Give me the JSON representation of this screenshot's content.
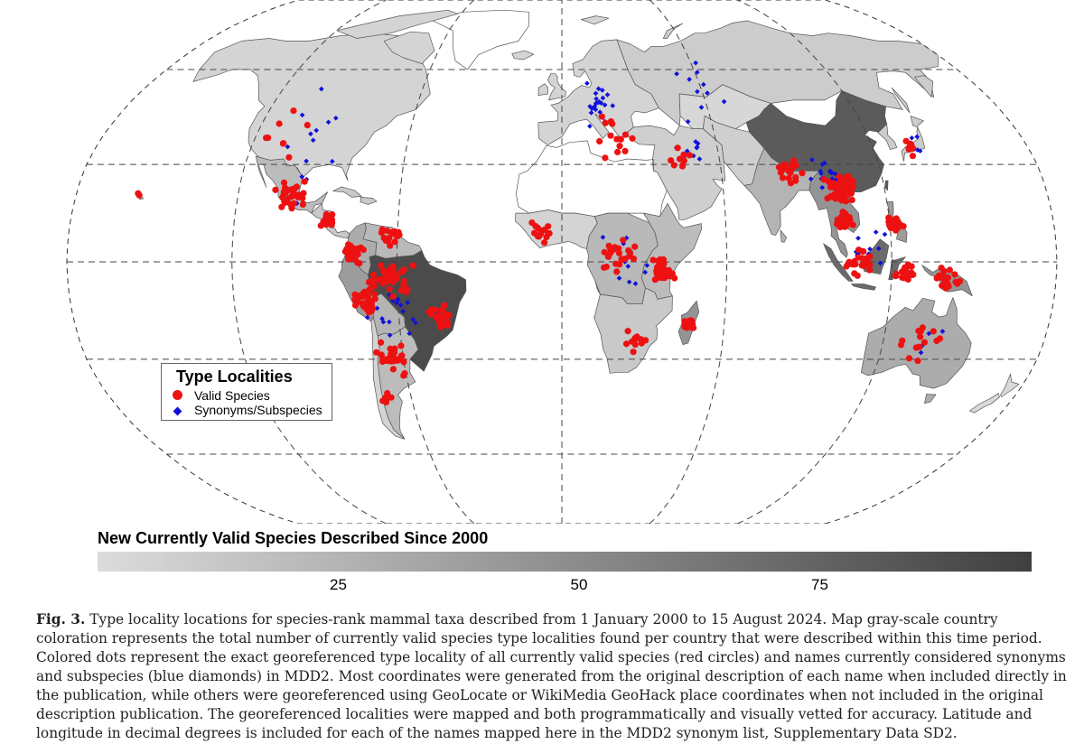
{
  "colors": {
    "valid": "#ee1111",
    "synonym": "#1010dd",
    "ocean": "#ffffff",
    "border": "#555555",
    "scale_low": "#dcdcdc",
    "scale_high": "#404040"
  },
  "map": {
    "projection": "Robinson",
    "shading_meaning": "country gray-scale = number of new currently valid species described since 2000",
    "regions": [
      {
        "name": "North America",
        "level": 5
      },
      {
        "name": "Mexico",
        "level": 20
      },
      {
        "name": "Central America",
        "level": 12
      },
      {
        "name": "Colombia",
        "level": 30
      },
      {
        "name": "Venezuela",
        "level": 22
      },
      {
        "name": "Peru",
        "level": 40
      },
      {
        "name": "Bolivia",
        "level": 25
      },
      {
        "name": "Brazil",
        "level": 90
      },
      {
        "name": "Argentina",
        "level": 20
      },
      {
        "name": "Chile",
        "level": 5
      },
      {
        "name": "Greenland",
        "level": 0
      },
      {
        "name": "Europe",
        "level": 5
      },
      {
        "name": "Russia",
        "level": 10
      },
      {
        "name": "China",
        "level": 80
      },
      {
        "name": "Kazakhstan",
        "level": 3
      },
      {
        "name": "Middle East",
        "level": 8
      },
      {
        "name": "India",
        "level": 25
      },
      {
        "name": "Southeast Asia",
        "level": 45
      },
      {
        "name": "Japan",
        "level": 10
      },
      {
        "name": "Indonesia",
        "level": 70
      },
      {
        "name": "Philippines",
        "level": 40
      },
      {
        "name": "New Guinea",
        "level": 45
      },
      {
        "name": "Australia",
        "level": 30
      },
      {
        "name": "New Zealand",
        "level": 2
      },
      {
        "name": "Sahara",
        "level": 0
      },
      {
        "name": "West Africa",
        "level": 5
      },
      {
        "name": "Central Africa",
        "level": 22
      },
      {
        "name": "East Africa",
        "level": 20
      },
      {
        "name": "Southern Africa",
        "level": 12
      },
      {
        "name": "Madagascar",
        "level": 45
      }
    ],
    "valid_species_clusters": [
      {
        "region": "Mexico",
        "lon": -101,
        "lat": 21,
        "spread": 6,
        "count": 30
      },
      {
        "region": "Central America",
        "lon": -86,
        "lat": 13,
        "spread": 3,
        "count": 22
      },
      {
        "region": "Colombia/Ecuador",
        "lon": -76,
        "lat": 3,
        "spread": 4,
        "count": 40
      },
      {
        "region": "Venezuela/Guianas",
        "lon": -63,
        "lat": 8,
        "spread": 5,
        "count": 16
      },
      {
        "region": "Amazon",
        "lon": -62,
        "lat": -5,
        "spread": 8,
        "count": 38
      },
      {
        "region": "Peru/Bolivia",
        "lon": -72,
        "lat": -12,
        "spread": 5,
        "count": 40
      },
      {
        "region": "Atlantic Forest",
        "lon": -44,
        "lat": -17,
        "spread": 5,
        "count": 22
      },
      {
        "region": "Southern Cone",
        "lon": -64,
        "lat": -30,
        "spread": 6,
        "count": 30
      },
      {
        "region": "Patagonia",
        "lon": -70,
        "lat": -42,
        "spread": 3,
        "count": 10
      },
      {
        "region": "West Africa",
        "lon": -8,
        "lat": 9,
        "spread": 5,
        "count": 14
      },
      {
        "region": "Central Africa",
        "lon": 20,
        "lat": 1,
        "spread": 8,
        "count": 26
      },
      {
        "region": "East Africa",
        "lon": 36,
        "lat": -3,
        "spread": 5,
        "count": 34
      },
      {
        "region": "Southern Africa",
        "lon": 27,
        "lat": -25,
        "spread": 5,
        "count": 12
      },
      {
        "region": "Madagascar",
        "lon": 47,
        "lat": -19,
        "spread": 2.5,
        "count": 26
      },
      {
        "region": "Mediterranean",
        "lon": 20,
        "lat": 38,
        "spread": 10,
        "count": 14
      },
      {
        "region": "Middle East",
        "lon": 47,
        "lat": 32,
        "spread": 7,
        "count": 10
      },
      {
        "region": "Himalaya",
        "lon": 86,
        "lat": 28,
        "spread": 6,
        "count": 20
      },
      {
        "region": "South China/Indochina",
        "lon": 104,
        "lat": 22,
        "spread": 6,
        "count": 55
      },
      {
        "region": "Indochina South",
        "lon": 104,
        "lat": 12,
        "spread": 4,
        "count": 28
      },
      {
        "region": "Philippines",
        "lon": 122,
        "lat": 12,
        "spread": 3,
        "count": 28
      },
      {
        "region": "Borneo/Sumatra",
        "lon": 108,
        "lat": 0,
        "spread": 5,
        "count": 26
      },
      {
        "region": "Sulawesi/Moluccas",
        "lon": 125,
        "lat": -3,
        "spread": 4,
        "count": 22
      },
      {
        "region": "New Guinea",
        "lon": 140,
        "lat": -5,
        "spread": 5,
        "count": 18
      },
      {
        "region": "Australia",
        "lon": 135,
        "lat": -24,
        "spread": 10,
        "count": 14
      },
      {
        "region": "Japan/Korea",
        "lon": 135,
        "lat": 36,
        "spread": 4,
        "count": 8
      },
      {
        "region": "North America",
        "lon": -110,
        "lat": 40,
        "spread": 12,
        "count": 8
      },
      {
        "region": "Hawaii",
        "lon": -157,
        "lat": 21,
        "spread": 1,
        "count": 2
      }
    ],
    "synonym_clusters": [
      {
        "region": "Europe",
        "lon": 15,
        "lat": 48,
        "spread": 10,
        "count": 22
      },
      {
        "region": "Russia",
        "lon": 60,
        "lat": 55,
        "spread": 20,
        "count": 10
      },
      {
        "region": "Middle East",
        "lon": 50,
        "lat": 33,
        "spread": 7,
        "count": 10
      },
      {
        "region": "North America",
        "lon": -100,
        "lat": 42,
        "spread": 16,
        "count": 10
      },
      {
        "region": "Mexico",
        "lon": -100,
        "lat": 22,
        "spread": 6,
        "count": 8
      },
      {
        "region": "South America",
        "lon": -60,
        "lat": -15,
        "spread": 12,
        "count": 18
      },
      {
        "region": "Africa",
        "lon": 25,
        "lat": 0,
        "spread": 12,
        "count": 14
      },
      {
        "region": "South Asia/China",
        "lon": 100,
        "lat": 25,
        "spread": 8,
        "count": 18
      },
      {
        "region": "Southeast Asia",
        "lon": 110,
        "lat": 5,
        "spread": 8,
        "count": 12
      },
      {
        "region": "Australia",
        "lon": 140,
        "lat": -25,
        "spread": 10,
        "count": 6
      },
      {
        "region": "Japan",
        "lon": 138,
        "lat": 37,
        "spread": 3,
        "count": 4
      }
    ]
  },
  "legend": {
    "title": "Type Localities",
    "items": [
      {
        "label": "Valid Species",
        "symbol": "red-circle"
      },
      {
        "label": "Synonyms/Subspecies",
        "symbol": "blue-diamond"
      }
    ]
  },
  "scale": {
    "title": "New Currently Valid Species Described Since 2000",
    "ticks": [
      {
        "value": 25,
        "label": "25"
      },
      {
        "value": 50,
        "label": "50"
      },
      {
        "value": 75,
        "label": "75"
      }
    ],
    "range": [
      0,
      97
    ]
  },
  "caption": {
    "fig_label": "Fig. 3.",
    "text": "Type locality locations for species-rank mammal taxa described from 1 January 2000 to 15 August 2024. Map gray-scale country coloration represents the total number of currently valid species type localities found per country that were described within this time period. Colored dots represent the exact georeferenced type locality of all currently valid species (red circles) and names currently considered synonyms and subspecies (blue diamonds) in MDD2. Most coordinates were generated from the original description of each name when included directly in the publication, while others were georeferenced using GeoLocate or WikiMedia GeoHack place coordinates when not included in the original description publication. The georeferenced localities were mapped and both programmatically and visually vetted for accuracy. Latitude and longitude in decimal degrees is included for each of the names mapped here in the MDD2 synonym list, Supplementary Data SD2."
  }
}
